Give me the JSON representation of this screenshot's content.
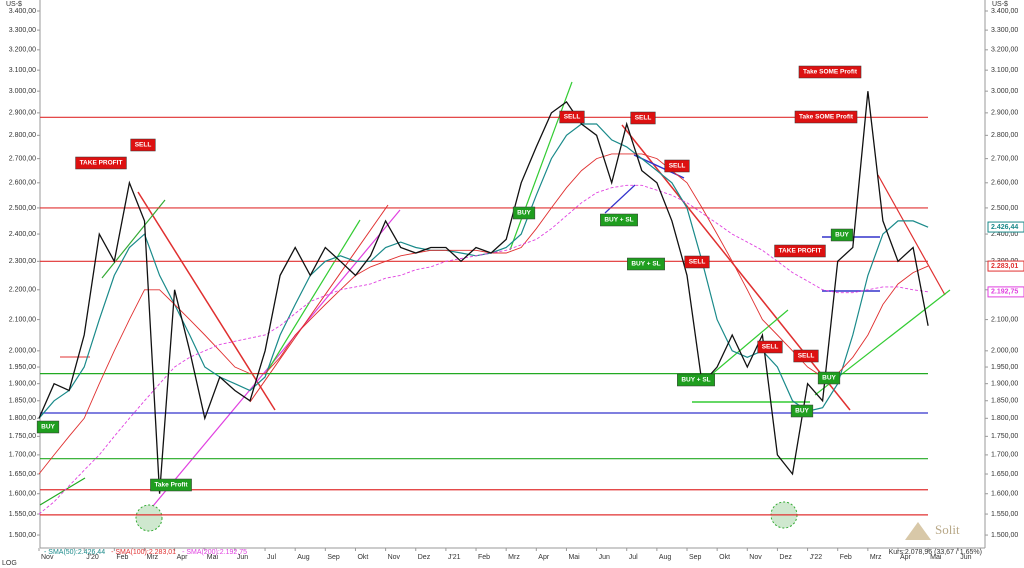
{
  "chart_data": {
    "type": "line",
    "yscale": "log",
    "ylabel": "US-$",
    "scale_label": "LOG",
    "footer": "Kurs:2.078,96 (33,67 / 1,65%)",
    "brand": "Solit",
    "categories": [
      "Nov",
      null,
      null,
      "J'20",
      null,
      "Feb",
      null,
      "Mrz",
      null,
      "Apr",
      null,
      "Mai",
      null,
      "Jun",
      null,
      "Jul",
      null,
      "Aug",
      null,
      "Sep",
      null,
      "Okt",
      null,
      "Nov",
      null,
      "Dez",
      null,
      "J'21",
      null,
      "Feb",
      null,
      "Mrz",
      null,
      "Apr",
      null,
      "Mai",
      null,
      "Jun",
      null,
      "Jul",
      null,
      "Aug",
      null,
      "Sep",
      null,
      "Okt",
      null,
      "Nov",
      null,
      "Dez",
      null,
      "J'22",
      null,
      "Feb",
      null,
      "Mrz",
      null,
      "Apr",
      null,
      "Mai",
      null,
      "Jun"
    ],
    "color": "#111111",
    "values": [
      1800,
      1900,
      1880,
      2050,
      2400,
      2300,
      2600,
      2450,
      1600,
      2200,
      2000,
      1800,
      1920,
      1880,
      1850,
      2000,
      2250,
      2350,
      2250,
      2350,
      2300,
      2250,
      2320,
      2450,
      2350,
      2330,
      2350,
      2350,
      2300,
      2350,
      2330,
      2380,
      2600,
      2750,
      2900,
      2950,
      2850,
      2800,
      2600,
      2850,
      2650,
      2600,
      2450,
      2250,
      1900,
      1950,
      2050,
      1950,
      2050,
      1700,
      1650,
      1900,
      1850,
      2300,
      2350,
      3000,
      2450,
      2300,
      2350,
      2080,
      null,
      null
    ],
    "series": [
      {
        "name": "- SMA(50):2.426,44",
        "color": "#1a8a8a",
        "dash": false,
        "values": [
          1800,
          1850,
          1880,
          1950,
          2100,
          2250,
          2350,
          2400,
          2250,
          2150,
          2050,
          1950,
          1920,
          1900,
          1880,
          1920,
          2050,
          2150,
          2250,
          2300,
          2320,
          2300,
          2300,
          2350,
          2370,
          2350,
          2340,
          2340,
          2330,
          2320,
          2330,
          2350,
          2400,
          2550,
          2700,
          2800,
          2850,
          2850,
          2780,
          2750,
          2700,
          2650,
          2600,
          2500,
          2300,
          2100,
          2000,
          1980,
          2000,
          1950,
          1850,
          1820,
          1830,
          1900,
          2050,
          2250,
          2400,
          2450,
          2450,
          2426,
          null,
          null
        ]
      },
      {
        "name": "- SMA(100):2.283,01",
        "color": "#e03030",
        "dash": false,
        "values": [
          1650,
          1700,
          1750,
          1800,
          1900,
          2000,
          2100,
          2200,
          2200,
          2150,
          2100,
          2050,
          2000,
          1950,
          1930,
          1930,
          1980,
          2050,
          2100,
          2150,
          2200,
          2250,
          2280,
          2300,
          2320,
          2330,
          2340,
          2340,
          2340,
          2340,
          2330,
          2330,
          2350,
          2420,
          2500,
          2580,
          2650,
          2700,
          2720,
          2720,
          2720,
          2700,
          2650,
          2600,
          2500,
          2400,
          2300,
          2200,
          2100,
          2050,
          2000,
          1950,
          1920,
          1930,
          1980,
          2050,
          2150,
          2220,
          2260,
          2283,
          null,
          null
        ]
      },
      {
        "name": "- SMA(200):2.192,75",
        "color": "#e040e0",
        "dash": true,
        "values": [
          1550,
          1580,
          1620,
          1660,
          1700,
          1750,
          1800,
          1850,
          1900,
          1950,
          1980,
          2000,
          2020,
          2030,
          2040,
          2050,
          2080,
          2120,
          2160,
          2180,
          2200,
          2210,
          2220,
          2240,
          2250,
          2270,
          2280,
          2300,
          2310,
          2320,
          2330,
          2340,
          2360,
          2380,
          2420,
          2470,
          2520,
          2560,
          2580,
          2590,
          2590,
          2570,
          2550,
          2520,
          2480,
          2440,
          2400,
          2370,
          2340,
          2300,
          2260,
          2230,
          2200,
          2190,
          2190,
          2200,
          2210,
          2210,
          2200,
          2193,
          null,
          null
        ]
      }
    ],
    "ylim": [
      1470,
      3432
    ],
    "yticks": [
      {
        "value": 1500,
        "label": "1.500,00"
      },
      {
        "value": 1550,
        "label": "1.550,00"
      },
      {
        "value": 1600,
        "label": "1.600,00"
      },
      {
        "value": 1650,
        "label": "1.650,00"
      },
      {
        "value": 1700,
        "label": "1.700,00"
      },
      {
        "value": 1750,
        "label": "1.750,00"
      },
      {
        "value": 1800,
        "label": "1.800,00"
      },
      {
        "value": 1850,
        "label": "1.850,00"
      },
      {
        "value": 1900,
        "label": "1.900,00"
      },
      {
        "value": 1950,
        "label": "1.950,00"
      },
      {
        "value": 2000,
        "label": "2.000,00"
      },
      {
        "value": 2100,
        "label": "2.100,00"
      },
      {
        "value": 2200,
        "label": "2.200,00"
      },
      {
        "value": 2300,
        "label": "2.300,00"
      },
      {
        "value": 2400,
        "label": "2.400,00"
      },
      {
        "value": 2500,
        "label": "2.500,00"
      },
      {
        "value": 2600,
        "label": "2.600,00"
      },
      {
        "value": 2700,
        "label": "2.700,00"
      },
      {
        "value": 2800,
        "label": "2.800,00"
      },
      {
        "value": 2900,
        "label": "2.900,00"
      },
      {
        "value": 3000,
        "label": "3.000,00"
      },
      {
        "value": 3100,
        "label": "3.100,00"
      },
      {
        "value": 3200,
        "label": "3.200,00"
      },
      {
        "value": 3300,
        "label": "3.300,00"
      },
      {
        "value": 3400,
        "label": "3.400,00"
      }
    ],
    "hlines": [
      {
        "value": 2880,
        "color": "#e03030"
      },
      {
        "value": 2500,
        "color": "#e03030"
      },
      {
        "value": 2300,
        "color": "#e03030"
      },
      {
        "value": 1930,
        "color": "#22aa22"
      },
      {
        "value": 1815,
        "color": "#3333cc"
      },
      {
        "value": 1690,
        "color": "#22aa22"
      },
      {
        "value": 1610,
        "color": "#e03030"
      },
      {
        "value": 1548,
        "color": "#e03030"
      }
    ],
    "price_tags": [
      {
        "label": "2.426,44",
        "value": 2426.44,
        "color": "#1a8a8a"
      },
      {
        "label": "2.283,01",
        "value": 2283.01,
        "color": "#e03030"
      },
      {
        "label": "2.192,75",
        "value": 2192.75,
        "color": "#e040e0"
      }
    ],
    "signals": [
      {
        "text": "BUY",
        "color": "#1f9e1f"
      },
      {
        "text": "TAKE PROFIT",
        "color": "#dd1111"
      },
      {
        "text": "SELL",
        "color": "#dd1111"
      },
      {
        "text": "Take Profit",
        "color": "#1f9e1f"
      },
      {
        "text": "SELL",
        "color": "#dd1111"
      },
      {
        "text": "SELL",
        "color": "#dd1111"
      },
      {
        "text": "BUY",
        "color": "#1f9e1f"
      },
      {
        "text": "BUY + SL",
        "color": "#1f9e1f"
      },
      {
        "text": "SELL",
        "color": "#dd1111"
      },
      {
        "text": "BUY + SL",
        "color": "#1f9e1f"
      },
      {
        "text": "SELL",
        "color": "#dd1111"
      },
      {
        "text": "BUY + SL",
        "color": "#1f9e1f"
      },
      {
        "text": "SELL",
        "color": "#dd1111"
      },
      {
        "text": "SELL",
        "color": "#dd1111"
      },
      {
        "text": "BUY",
        "color": "#1f9e1f"
      },
      {
        "text": "BUY",
        "color": "#1f9e1f"
      },
      {
        "text": "BUY",
        "color": "#1f9e1f"
      },
      {
        "text": "TAKE PROFIT",
        "color": "#dd1111"
      },
      {
        "text": "Take SOME Profit",
        "color": "#dd1111"
      },
      {
        "text": "Take SOME Profit",
        "color": "#dd1111"
      }
    ]
  }
}
